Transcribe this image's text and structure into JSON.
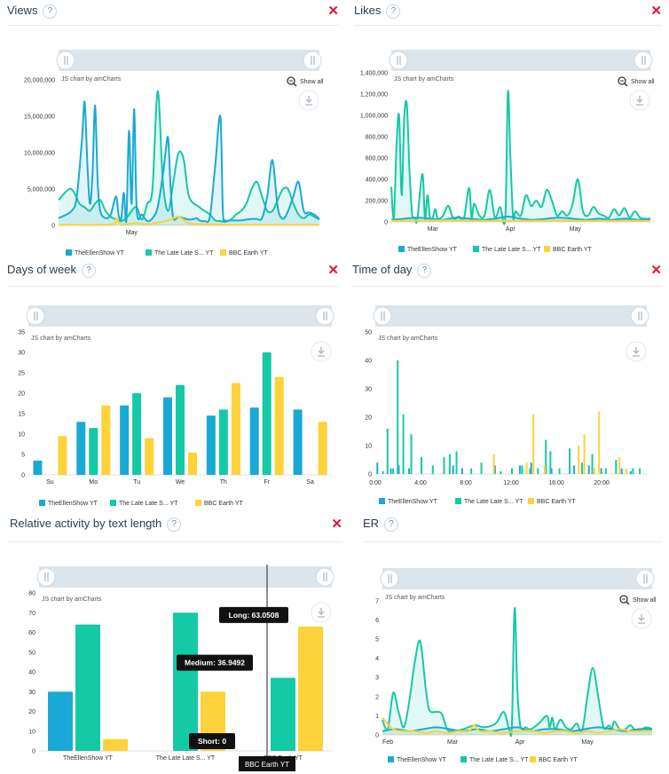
{
  "panels": [
    {
      "key": "views",
      "title": "Views",
      "help": "?",
      "close": "✕",
      "credit": "JS chart by amCharts",
      "show_all": "Show all"
    },
    {
      "key": "likes",
      "title": "Likes",
      "help": "?",
      "close": "✕",
      "credit": "JS chart by amCharts",
      "show_all": "Show all"
    },
    {
      "key": "dow",
      "title": "Days of week",
      "help": "?",
      "close": "✕",
      "credit": "JS chart by amCharts",
      "show_all": ""
    },
    {
      "key": "tod",
      "title": "Time of day",
      "help": "?",
      "close": "✕",
      "credit": "JS chart by amCharts",
      "show_all": ""
    },
    {
      "key": "len",
      "title": "Relative activity by text length",
      "help": "?",
      "close": "✕",
      "credit": "JS chart by amCharts",
      "show_all": ""
    },
    {
      "key": "er",
      "title": "ER",
      "help": "?",
      "close": "",
      "credit": "JS chart by amCharts",
      "show_all": "Show all"
    }
  ],
  "colors": {
    "ellen": "#1aa9d6",
    "latelate": "#14c9a6",
    "bbc": "#fdd23a",
    "close": "#e0163b",
    "scrollbar": "#dde5ec"
  },
  "chart_data": [
    {
      "type": "area",
      "id": "views",
      "yticks": [
        0,
        5000000,
        10000000,
        15000000,
        20000000
      ],
      "ytick_labels": [
        "0",
        "5,000,000",
        "10,000,000",
        "15,000,000",
        "20,000,000"
      ],
      "ylim": [
        0,
        21000000
      ],
      "xlim": [
        0,
        100
      ],
      "xtick_labels": [
        "May"
      ],
      "xtick_positions": [
        28
      ],
      "series": [
        {
          "name": "TheEllenShow YT",
          "color": "#1aa9d6",
          "x": [
            0,
            5,
            7,
            9,
            10,
            11,
            12,
            13,
            14,
            15,
            16,
            18,
            20,
            22,
            23,
            24,
            25,
            26,
            27,
            28,
            29,
            30,
            32,
            34,
            36,
            38,
            40,
            41,
            42,
            43,
            44,
            46,
            48,
            50,
            52,
            53,
            54,
            56,
            58,
            60,
            62,
            63,
            64,
            66,
            70,
            72,
            74,
            76,
            78,
            80,
            82,
            84,
            86,
            88,
            90,
            92,
            94,
            96,
            98,
            100
          ],
          "y": [
            1000000,
            2000000,
            4000000,
            12000000,
            17000000,
            9000000,
            3000000,
            7000000,
            16500000,
            6000000,
            2000000,
            1000000,
            1500000,
            4000000,
            1500000,
            800000,
            4500000,
            700000,
            13000000,
            3000000,
            16000000,
            2000000,
            1500000,
            600000,
            1000000,
            2500000,
            7000000,
            10000000,
            12000000,
            5000000,
            1000000,
            1200000,
            1000000,
            800000,
            900000,
            1000000,
            700000,
            600000,
            1200000,
            8000000,
            15000000,
            2000000,
            700000,
            700000,
            700000,
            800000,
            900000,
            900000,
            1000000,
            4000000,
            9000000,
            2500000,
            900000,
            2000000,
            4000000,
            6000000,
            2000000,
            1800000,
            1500000,
            900000
          ]
        },
        {
          "name": "The Late Late S... YT",
          "color": "#14c9a6",
          "x": [
            0,
            4,
            6,
            8,
            10,
            12,
            14,
            16,
            18,
            20,
            22,
            24,
            26,
            28,
            30,
            32,
            34,
            36,
            38,
            40,
            42,
            44,
            46,
            48,
            50,
            54,
            58,
            60,
            62,
            64,
            66,
            68,
            70,
            72,
            74,
            76,
            78,
            80,
            82,
            84,
            86,
            88,
            90,
            92,
            94,
            96,
            98,
            100
          ],
          "y": [
            3500000,
            5000000,
            4500000,
            3000000,
            2500000,
            2000000,
            3000000,
            3500000,
            2000000,
            1200000,
            800000,
            600000,
            1000000,
            2000000,
            2500000,
            800000,
            3000000,
            5000000,
            18500000,
            6000000,
            2000000,
            6000000,
            10000000,
            9000000,
            4000000,
            2500000,
            1500000,
            700000,
            600000,
            500000,
            800000,
            1500000,
            2000000,
            3000000,
            5000000,
            6000000,
            4000000,
            2000000,
            2000000,
            3500000,
            5000000,
            5000000,
            3000000,
            1500000,
            1000000,
            1500000,
            1200000,
            800000
          ]
        },
        {
          "name": "BBC Earth YT",
          "color": "#fdd23a",
          "x": [
            0,
            20,
            22,
            24,
            30,
            34,
            38,
            42,
            46,
            50,
            55,
            60,
            70,
            80,
            90,
            100
          ],
          "y": [
            100000,
            150000,
            1000000,
            200000,
            300000,
            200000,
            400000,
            700000,
            1200000,
            300000,
            200000,
            150000,
            100000,
            100000,
            100000,
            100000
          ]
        }
      ]
    },
    {
      "type": "area",
      "id": "likes",
      "yticks": [
        0,
        200000,
        400000,
        600000,
        800000,
        1000000,
        1200000,
        1400000
      ],
      "ytick_labels": [
        "0",
        "200,000",
        "400,000",
        "600,000",
        "800,000",
        "1,000,000",
        "1,200,000",
        "1,400,000"
      ],
      "ylim": [
        0,
        1400000
      ],
      "xlim": [
        0,
        100
      ],
      "xtick_labels": [
        "Mar",
        "Apr",
        "May"
      ],
      "xtick_positions": [
        16,
        46,
        71
      ],
      "series": [
        {
          "name": "TheEllenShow YT",
          "color": "#1aa9d6",
          "x": [
            0,
            5,
            10,
            15,
            20,
            25,
            30,
            35,
            40,
            45,
            50,
            55,
            60,
            65,
            70,
            75,
            80,
            85,
            90,
            95,
            100
          ],
          "y": [
            20000,
            30000,
            40000,
            30000,
            20000,
            40000,
            30000,
            20000,
            30000,
            50000,
            30000,
            20000,
            30000,
            40000,
            30000,
            20000,
            30000,
            20000,
            30000,
            20000,
            20000
          ]
        },
        {
          "name": "The Late Late S... YT",
          "color": "#14c9a6",
          "x": [
            0,
            1,
            2,
            3,
            4,
            5,
            6,
            7,
            8,
            9,
            10,
            12,
            13,
            14,
            15,
            16,
            17,
            18,
            20,
            22,
            24,
            26,
            28,
            30,
            31,
            32,
            34,
            36,
            38,
            40,
            42,
            44,
            45,
            46,
            47,
            48,
            50,
            52,
            54,
            56,
            58,
            60,
            62,
            64,
            66,
            68,
            70,
            72,
            74,
            76,
            78,
            80,
            82,
            84,
            86,
            88,
            90,
            92,
            94,
            96,
            98,
            100
          ],
          "y": [
            330000,
            40000,
            700000,
            1000000,
            250000,
            980000,
            1100000,
            500000,
            80000,
            40000,
            20000,
            450000,
            30000,
            250000,
            30000,
            40000,
            120000,
            30000,
            60000,
            150000,
            30000,
            50000,
            30000,
            320000,
            40000,
            170000,
            60000,
            60000,
            300000,
            40000,
            140000,
            40000,
            1220000,
            600000,
            50000,
            100000,
            60000,
            250000,
            150000,
            200000,
            140000,
            300000,
            200000,
            60000,
            100000,
            60000,
            170000,
            400000,
            100000,
            60000,
            140000,
            80000,
            60000,
            40000,
            120000,
            60000,
            130000,
            40000,
            100000,
            40000,
            30000,
            30000
          ]
        },
        {
          "name": "BBC Earth YT",
          "color": "#fdd23a",
          "x": [
            0,
            20,
            40,
            60,
            80,
            100
          ],
          "y": [
            10000,
            15000,
            10000,
            12000,
            10000,
            10000
          ]
        }
      ]
    },
    {
      "type": "bar",
      "id": "dow",
      "categories": [
        "Su",
        "Mo",
        "Tu",
        "We",
        "Th",
        "Fr",
        "Sa"
      ],
      "yticks": [
        0,
        5,
        10,
        15,
        20,
        25,
        30,
        35
      ],
      "ylim": [
        0,
        35
      ],
      "series": [
        {
          "name": "TheEllenShow YT",
          "color": "#1aa9d6",
          "values": [
            3.5,
            13,
            17,
            19,
            14.5,
            16.5,
            16
          ]
        },
        {
          "name": "The Late Late S... YT",
          "color": "#14c9a6",
          "values": [
            0,
            11.5,
            20,
            22,
            16,
            30,
            0
          ]
        },
        {
          "name": "BBC Earth YT",
          "color": "#fdd23a",
          "values": [
            9.5,
            17,
            9,
            5.5,
            22.5,
            24,
            13
          ]
        }
      ]
    },
    {
      "type": "bar",
      "id": "tod",
      "xlim": [
        0,
        24
      ],
      "ylim": [
        0,
        50
      ],
      "yticks": [
        0,
        10,
        20,
        30,
        40,
        50
      ],
      "xtick_labels": [
        "0:00",
        "4:00",
        "8:00",
        "12:00",
        "16:00",
        "20:00"
      ],
      "xtick_values": [
        0,
        4,
        8,
        12,
        16,
        20
      ],
      "series": [
        {
          "name": "TheEllenShow YT",
          "color": "#1aa9d6",
          "x": [
            0.1,
            1.3,
            2.0,
            2.9,
            6.8,
            7.6,
            10.5,
            12.7,
            13.7,
            15.5,
            17.5,
            18.8,
            19.9,
            21.7,
            22.5
          ],
          "values": [
            4,
            2,
            3,
            2,
            3,
            2,
            3,
            3,
            4,
            2,
            3,
            3,
            2,
            2,
            1
          ]
        },
        {
          "name": "The Late Late S... YT",
          "color": "#14c9a6",
          "x": [
            0.6,
            1.0,
            1.5,
            1.9,
            2.4,
            3.1,
            4.0,
            5.0,
            6.0,
            6.5,
            7.1,
            8.4,
            9.3,
            11.0,
            12.0,
            12.9,
            13.6,
            14.3,
            15.0,
            15.4,
            16.2,
            17.1,
            18.2,
            19.1,
            20.3,
            21.2,
            22.7,
            23.3
          ],
          "values": [
            1,
            16,
            2,
            40,
            21,
            14,
            6,
            3,
            6,
            7,
            8,
            2,
            4,
            1,
            2,
            3,
            2,
            2,
            12,
            8,
            2,
            9,
            4,
            7,
            2,
            5,
            2,
            2
          ]
        },
        {
          "name": "BBC Earth YT",
          "color": "#fdd23a",
          "x": [
            10.4,
            13.3,
            13.9,
            14.9,
            17.9,
            18.4,
            19.3,
            19.7,
            21.5,
            22.1
          ],
          "values": [
            7,
            4,
            21,
            3,
            10,
            14,
            2,
            22,
            6,
            2
          ]
        }
      ]
    },
    {
      "type": "bar",
      "id": "len",
      "categories": [
        "TheEllenShow YT",
        "The Late Late S... YT",
        "BBC Earth YT"
      ],
      "yticks": [
        0,
        10,
        20,
        30,
        40,
        50,
        60,
        70,
        80
      ],
      "ylim": [
        0,
        80
      ],
      "series": [
        {
          "name": "Short",
          "color": "#1aa9d6",
          "values": [
            30,
            0,
            0
          ]
        },
        {
          "name": "Medium",
          "color": "#14c9a6",
          "values": [
            64,
            70,
            37
          ]
        },
        {
          "name": "Long",
          "color": "#fdd23a",
          "values": [
            6,
            30,
            63
          ]
        }
      ],
      "tooltips": [
        "Long: 63.0508",
        "Medium: 36.9492",
        "Short: 0"
      ],
      "cursor_label": "BBC Earth YT"
    },
    {
      "type": "area",
      "id": "er",
      "yticks": [
        0,
        1,
        2,
        3,
        4,
        5,
        6,
        7
      ],
      "ylim": [
        0,
        7.5
      ],
      "xlim": [
        0,
        100
      ],
      "xtick_labels": [
        "Feb",
        "Mar",
        "Apr",
        "May"
      ],
      "xtick_positions": [
        2,
        26,
        51,
        76
      ],
      "series": [
        {
          "name": "TheEllenShow YT",
          "color": "#1aa9d6",
          "x": [
            0,
            5,
            10,
            15,
            20,
            25,
            30,
            35,
            40,
            45,
            50,
            55,
            60,
            65,
            70,
            75,
            80,
            85,
            90,
            95,
            100
          ],
          "y": [
            0.2,
            0.3,
            0.2,
            0.3,
            0.4,
            0.3,
            0.2,
            0.3,
            0.2,
            0.3,
            0.4,
            0.2,
            0.3,
            0.3,
            0.2,
            0.3,
            0.4,
            0.3,
            0.2,
            0.3,
            0.3
          ]
        },
        {
          "name": "The Late Late S... YT",
          "color": "#14c9a6",
          "x": [
            0,
            2,
            4,
            6,
            8,
            10,
            12,
            14,
            16,
            17,
            18,
            20,
            22,
            24,
            26,
            30,
            34,
            38,
            42,
            45,
            47,
            48,
            49,
            50,
            51,
            52,
            53,
            55,
            58,
            61,
            62,
            63,
            64,
            66,
            68,
            70,
            72,
            74,
            76,
            78,
            80,
            82,
            84,
            85,
            86,
            88,
            90,
            92,
            94,
            96,
            98,
            100
          ],
          "y": [
            0.8,
            0.3,
            2.2,
            1.2,
            0.4,
            1.8,
            3.8,
            4.9,
            2.5,
            1.5,
            1.2,
            1.2,
            1.1,
            0.3,
            0.2,
            0.3,
            0.5,
            0.4,
            0.6,
            1.2,
            0.3,
            0.5,
            6.6,
            2.5,
            0.6,
            0.3,
            0.4,
            0.3,
            0.6,
            1.0,
            0.4,
            0.9,
            0.3,
            0.8,
            0.4,
            0.3,
            0.6,
            0.2,
            2.0,
            3.5,
            2.0,
            0.4,
            0.5,
            0.3,
            0.7,
            0.3,
            0.3,
            0.5,
            0.2,
            0.3,
            0.4,
            0.3
          ]
        },
        {
          "name": "BBC Earth YT",
          "color": "#fdd23a",
          "x": [
            0,
            4,
            8,
            12,
            16,
            20,
            24,
            28,
            32,
            34,
            36,
            40,
            44,
            50,
            56,
            60,
            64,
            68,
            72,
            76,
            80,
            84,
            88,
            92,
            96,
            100
          ],
          "y": [
            0.9,
            0.3,
            0.2,
            0.2,
            0.1,
            0.2,
            0.1,
            0.2,
            0.2,
            0.5,
            0.2,
            0.2,
            0.1,
            0.2,
            0.2,
            0.1,
            0.2,
            0.2,
            0.1,
            0.2,
            0.1,
            0.2,
            0.3,
            0.2,
            0.2,
            0.2
          ]
        }
      ]
    }
  ],
  "legend": [
    "TheEllenShow YT",
    "The Late Late S... YT",
    "BBC Earth YT"
  ]
}
